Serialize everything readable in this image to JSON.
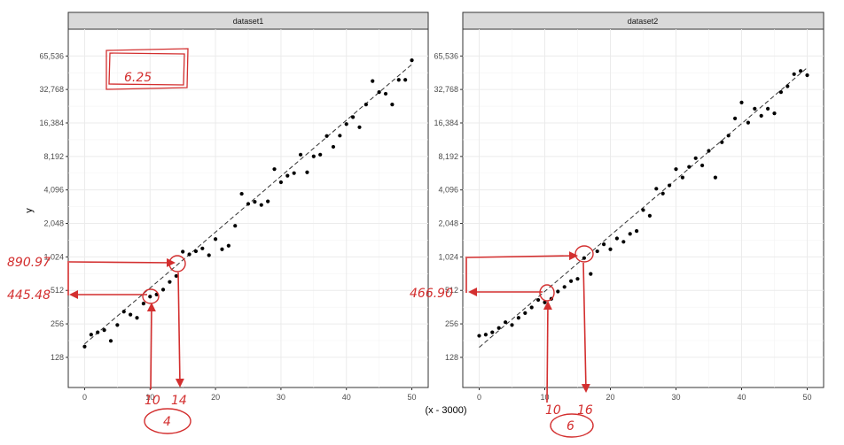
{
  "chart_data": [
    {
      "type": "scatter",
      "facet": "dataset1",
      "xlabel": "(x - 3000)",
      "ylabel": "y",
      "xlim": [
        -2.5,
        52.5
      ],
      "ylim_log2": [
        6.1,
        16.8
      ],
      "x_ticks": [
        0,
        10,
        20,
        30,
        40,
        50
      ],
      "y_ticks": [
        128,
        256,
        512,
        1024,
        2048,
        4096,
        8192,
        16384,
        32768,
        65536
      ],
      "y_tick_labels": [
        "128",
        "256",
        "512",
        "1,024",
        "2,048",
        "4,096",
        "8,192",
        "16,384",
        "32,768",
        "65,536"
      ],
      "x_tick_labels": [
        "0",
        "10",
        "20",
        "30",
        "40",
        "50"
      ],
      "grid": true,
      "trend": {
        "slope_log2": 0.167,
        "intercept_log2": 7.4
      },
      "points": [
        [
          0,
          160
        ],
        [
          1,
          205
        ],
        [
          2,
          215
        ],
        [
          3,
          225
        ],
        [
          4,
          180
        ],
        [
          5,
          250
        ],
        [
          6,
          330
        ],
        [
          7,
          310
        ],
        [
          8,
          290
        ],
        [
          9,
          390
        ],
        [
          10,
          450
        ],
        [
          11,
          470
        ],
        [
          12,
          520
        ],
        [
          13,
          610
        ],
        [
          14,
          690
        ],
        [
          15,
          1140
        ],
        [
          16,
          1080
        ],
        [
          17,
          1150
        ],
        [
          18,
          1220
        ],
        [
          19,
          1060
        ],
        [
          20,
          1480
        ],
        [
          21,
          1200
        ],
        [
          22,
          1290
        ],
        [
          23,
          1950
        ],
        [
          24,
          3780
        ],
        [
          25,
          3070
        ],
        [
          26,
          3200
        ],
        [
          27,
          3000
        ],
        [
          28,
          3230
        ],
        [
          29,
          6300
        ],
        [
          30,
          4800
        ],
        [
          31,
          5500
        ],
        [
          32,
          5800
        ],
        [
          33,
          8500
        ],
        [
          34,
          5900
        ],
        [
          35,
          8200
        ],
        [
          36,
          8500
        ],
        [
          37,
          12500
        ],
        [
          38,
          10000
        ],
        [
          39,
          12600
        ],
        [
          40,
          16000
        ],
        [
          41,
          18500
        ],
        [
          42,
          15000
        ],
        [
          43,
          24000
        ],
        [
          44,
          39000
        ],
        [
          45,
          31000
        ],
        [
          46,
          30000
        ],
        [
          47,
          24000
        ],
        [
          48,
          40000
        ],
        [
          49,
          40000
        ],
        [
          50,
          60000
        ]
      ],
      "annotations": {
        "box_value": "6.25",
        "y_high": "890.97",
        "y_low": "445.48",
        "x_low": "10",
        "x_high": "14",
        "diff": "4"
      }
    },
    {
      "type": "scatter",
      "facet": "dataset2",
      "xlabel": "(x - 3000)",
      "xlim": [
        -2.5,
        52.5
      ],
      "ylim_log2": [
        6.1,
        16.8
      ],
      "x_ticks": [
        0,
        10,
        20,
        30,
        40,
        50
      ],
      "y_ticks": [
        128,
        256,
        512,
        1024,
        2048,
        4096,
        8192,
        16384,
        32768,
        65536
      ],
      "y_tick_labels": [
        "128",
        "256",
        "512",
        "1,024",
        "2,048",
        "4,096",
        "8,192",
        "16,384",
        "32,768",
        "65,536"
      ],
      "x_tick_labels": [
        "0",
        "10",
        "20",
        "30",
        "40",
        "50"
      ],
      "grid": true,
      "trend": {
        "slope_log2": 0.167,
        "intercept_log2": 7.3
      },
      "points": [
        [
          0,
          200
        ],
        [
          1,
          205
        ],
        [
          2,
          215
        ],
        [
          3,
          235
        ],
        [
          4,
          265
        ],
        [
          5,
          250
        ],
        [
          6,
          290
        ],
        [
          7,
          320
        ],
        [
          8,
          360
        ],
        [
          9,
          420
        ],
        [
          10,
          400
        ],
        [
          11,
          430
        ],
        [
          12,
          500
        ],
        [
          13,
          550
        ],
        [
          14,
          620
        ],
        [
          15,
          650
        ],
        [
          16,
          1000
        ],
        [
          17,
          720
        ],
        [
          18,
          1150
        ],
        [
          19,
          1330
        ],
        [
          20,
          1200
        ],
        [
          21,
          1500
        ],
        [
          22,
          1400
        ],
        [
          23,
          1650
        ],
        [
          24,
          1750
        ],
        [
          25,
          2700
        ],
        [
          26,
          2400
        ],
        [
          27,
          4200
        ],
        [
          28,
          3800
        ],
        [
          29,
          4500
        ],
        [
          30,
          6300
        ],
        [
          31,
          5300
        ],
        [
          32,
          6600
        ],
        [
          33,
          7900
        ],
        [
          34,
          6800
        ],
        [
          35,
          9200
        ],
        [
          36,
          5300
        ],
        [
          37,
          11000
        ],
        [
          38,
          12600
        ],
        [
          39,
          18000
        ],
        [
          40,
          25000
        ],
        [
          41,
          16500
        ],
        [
          42,
          22000
        ],
        [
          43,
          19000
        ],
        [
          44,
          22000
        ],
        [
          45,
          20000
        ],
        [
          46,
          31000
        ],
        [
          47,
          35000
        ],
        [
          48,
          45000
        ],
        [
          49,
          48000
        ],
        [
          50,
          44000
        ]
      ],
      "annotations": {
        "y_low": "466.90",
        "x_low": "10",
        "x_high": "16",
        "diff": "6"
      }
    }
  ],
  "colors": {
    "annotation": "#d32f2f",
    "points": "#000000",
    "grid": "#ebebeb",
    "strip": "#d9d9d9"
  }
}
